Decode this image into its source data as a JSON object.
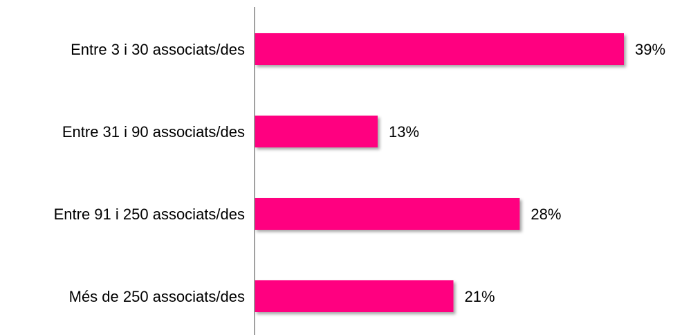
{
  "chart_data": {
    "type": "bar",
    "orientation": "horizontal",
    "title": "",
    "xlabel": "",
    "ylabel": "",
    "categories": [
      "Entre 3 i 30 associats/des",
      "Entre 31 i 90 associats/des",
      "Entre 91 i 250 associats/des",
      "Més de 250 associats/des"
    ],
    "values": [
      39,
      13,
      28,
      21
    ],
    "value_labels": [
      "39%",
      "13%",
      "28%",
      "21%"
    ],
    "unit": "%",
    "xlim": [
      0,
      39
    ],
    "grid": false,
    "legend": "none",
    "bar_color": "#FF0080",
    "axis_color": "#808080"
  }
}
